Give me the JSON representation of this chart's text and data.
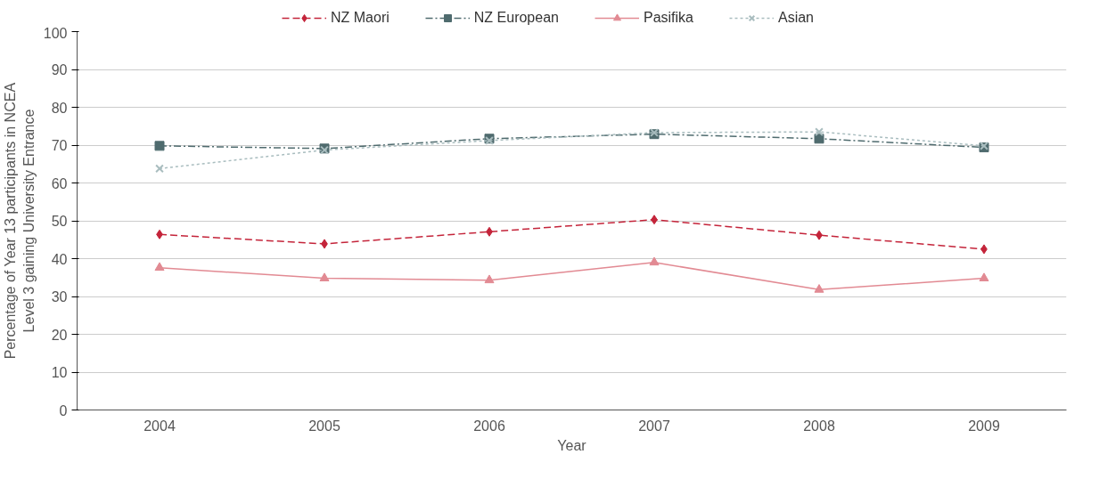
{
  "chart_data": {
    "type": "line",
    "xlabel": "Year",
    "ylabel": "Percentage of Year 13 participants in NCEA\nLevel 3 gaining University Entrance",
    "categories": [
      "2004",
      "2005",
      "2006",
      "2007",
      "2008",
      "2009"
    ],
    "series": [
      {
        "name": "NZ Maori",
        "color": "#c4243a",
        "marker": "diamond",
        "line_style": "dashed",
        "values": [
          46.4,
          43.9,
          47.1,
          50.3,
          46.2,
          42.5
        ]
      },
      {
        "name": "NZ European",
        "color": "#4f6b6e",
        "marker": "square",
        "line_style": "dashdot",
        "values": [
          69.8,
          69.1,
          71.7,
          72.9,
          71.7,
          69.4
        ]
      },
      {
        "name": "Pasifika",
        "color": "#e28a93",
        "marker": "triangle",
        "line_style": "solid",
        "values": [
          37.6,
          34.8,
          34.3,
          39.0,
          31.8,
          34.8
        ]
      },
      {
        "name": "Asian",
        "color": "#a9bdbf",
        "marker": "cross",
        "line_style": "dotted",
        "values": [
          63.8,
          68.7,
          71.2,
          73.3,
          73.5,
          69.8
        ]
      }
    ],
    "ylim": [
      0,
      100
    ],
    "yticks": [
      0,
      10,
      20,
      30,
      40,
      50,
      60,
      70,
      80,
      90,
      100
    ],
    "grid": "y",
    "legend": "top"
  }
}
